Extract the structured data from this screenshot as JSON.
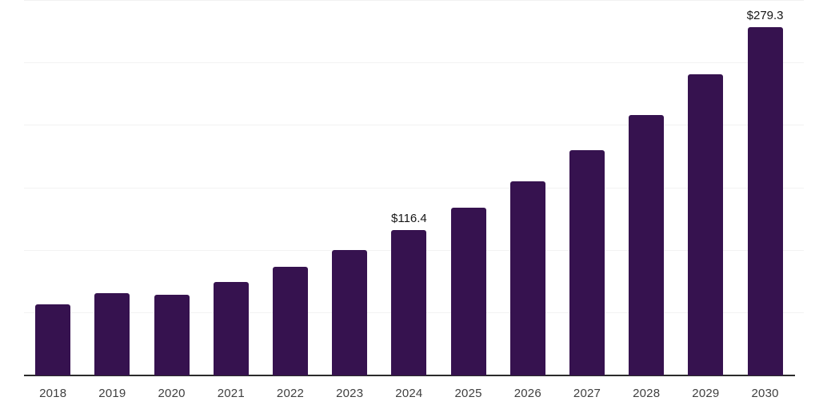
{
  "chart_data": {
    "type": "bar",
    "title": "",
    "xlabel": "",
    "ylabel": "",
    "categories": [
      "2018",
      "2019",
      "2020",
      "2021",
      "2022",
      "2023",
      "2024",
      "2025",
      "2026",
      "2027",
      "2028",
      "2029",
      "2030"
    ],
    "values": [
      57.0,
      65.8,
      64.5,
      75.1,
      86.8,
      100.6,
      116.4,
      134.7,
      155.8,
      180.3,
      208.6,
      241.4,
      279.3
    ],
    "data_labels": [
      {
        "category": "2024",
        "text": "$116.4"
      },
      {
        "category": "2030",
        "text": "$279.3"
      }
    ],
    "ylim": [
      0,
      300
    ],
    "gridline_values": [
      50,
      100,
      150,
      200,
      250,
      300
    ],
    "grid": true,
    "legend": "none",
    "colors": {
      "bar": "#36124f",
      "gridline": "#f2f2f2",
      "axis_line": "#2b2b2b",
      "tick_label": "#404040",
      "data_label": "#161616"
    }
  }
}
